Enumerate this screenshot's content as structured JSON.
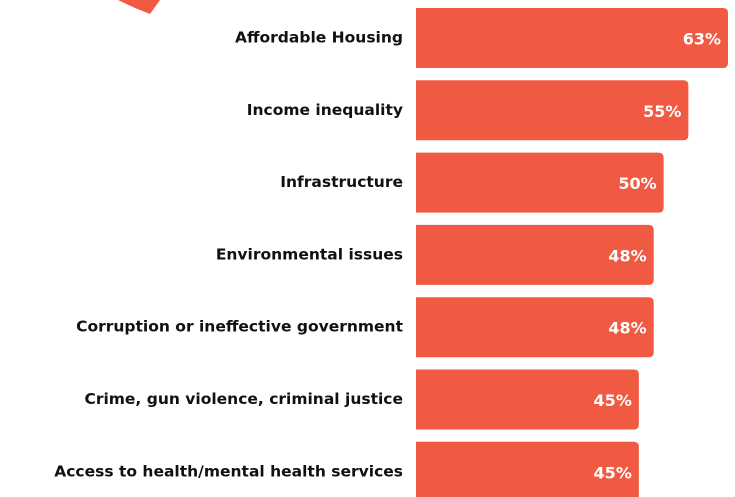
{
  "chart_data": {
    "type": "bar",
    "orientation": "horizontal",
    "categories": [
      "Affordable Housing",
      "Income inequality",
      "Infrastructure",
      "Environmental issues",
      "Corruption or ineffective government",
      "Crime, gun violence, criminal justice",
      "Access to health/mental health services"
    ],
    "values": [
      63,
      55,
      50,
      48,
      48,
      45,
      45
    ],
    "value_labels": [
      "63%",
      "55%",
      "50%",
      "48%",
      "48%",
      "45%",
      "45%"
    ],
    "unit": "%",
    "title": "",
    "xlabel": "",
    "ylabel": "",
    "grid": false,
    "legend": "none"
  },
  "colors": {
    "bar": "#f05a43",
    "decoration": "#f05a43",
    "label_text": "#111111",
    "value_text": "#ffffff"
  }
}
